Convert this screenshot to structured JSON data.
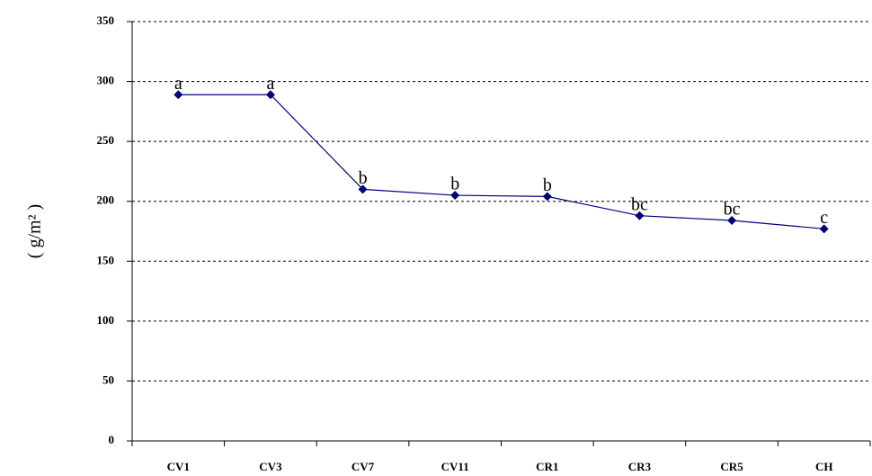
{
  "chart_data": {
    "type": "line",
    "y_label": "( g/m² )",
    "categories": [
      "CV1",
      "CV3",
      "CV7",
      "CV11",
      "CR1",
      "CR3",
      "CR5",
      "CH"
    ],
    "series": [
      {
        "color": "#000080",
        "values": [
          289,
          289,
          210,
          205,
          204,
          188,
          184,
          177
        ],
        "annotations": [
          "a",
          "a",
          "b",
          "b",
          "b",
          "bc",
          "bc",
          "c"
        ]
      }
    ],
    "ylim": [
      0,
      350
    ],
    "yticks": [
      0,
      50,
      100,
      150,
      200,
      250,
      300,
      350
    ],
    "grid": true
  }
}
